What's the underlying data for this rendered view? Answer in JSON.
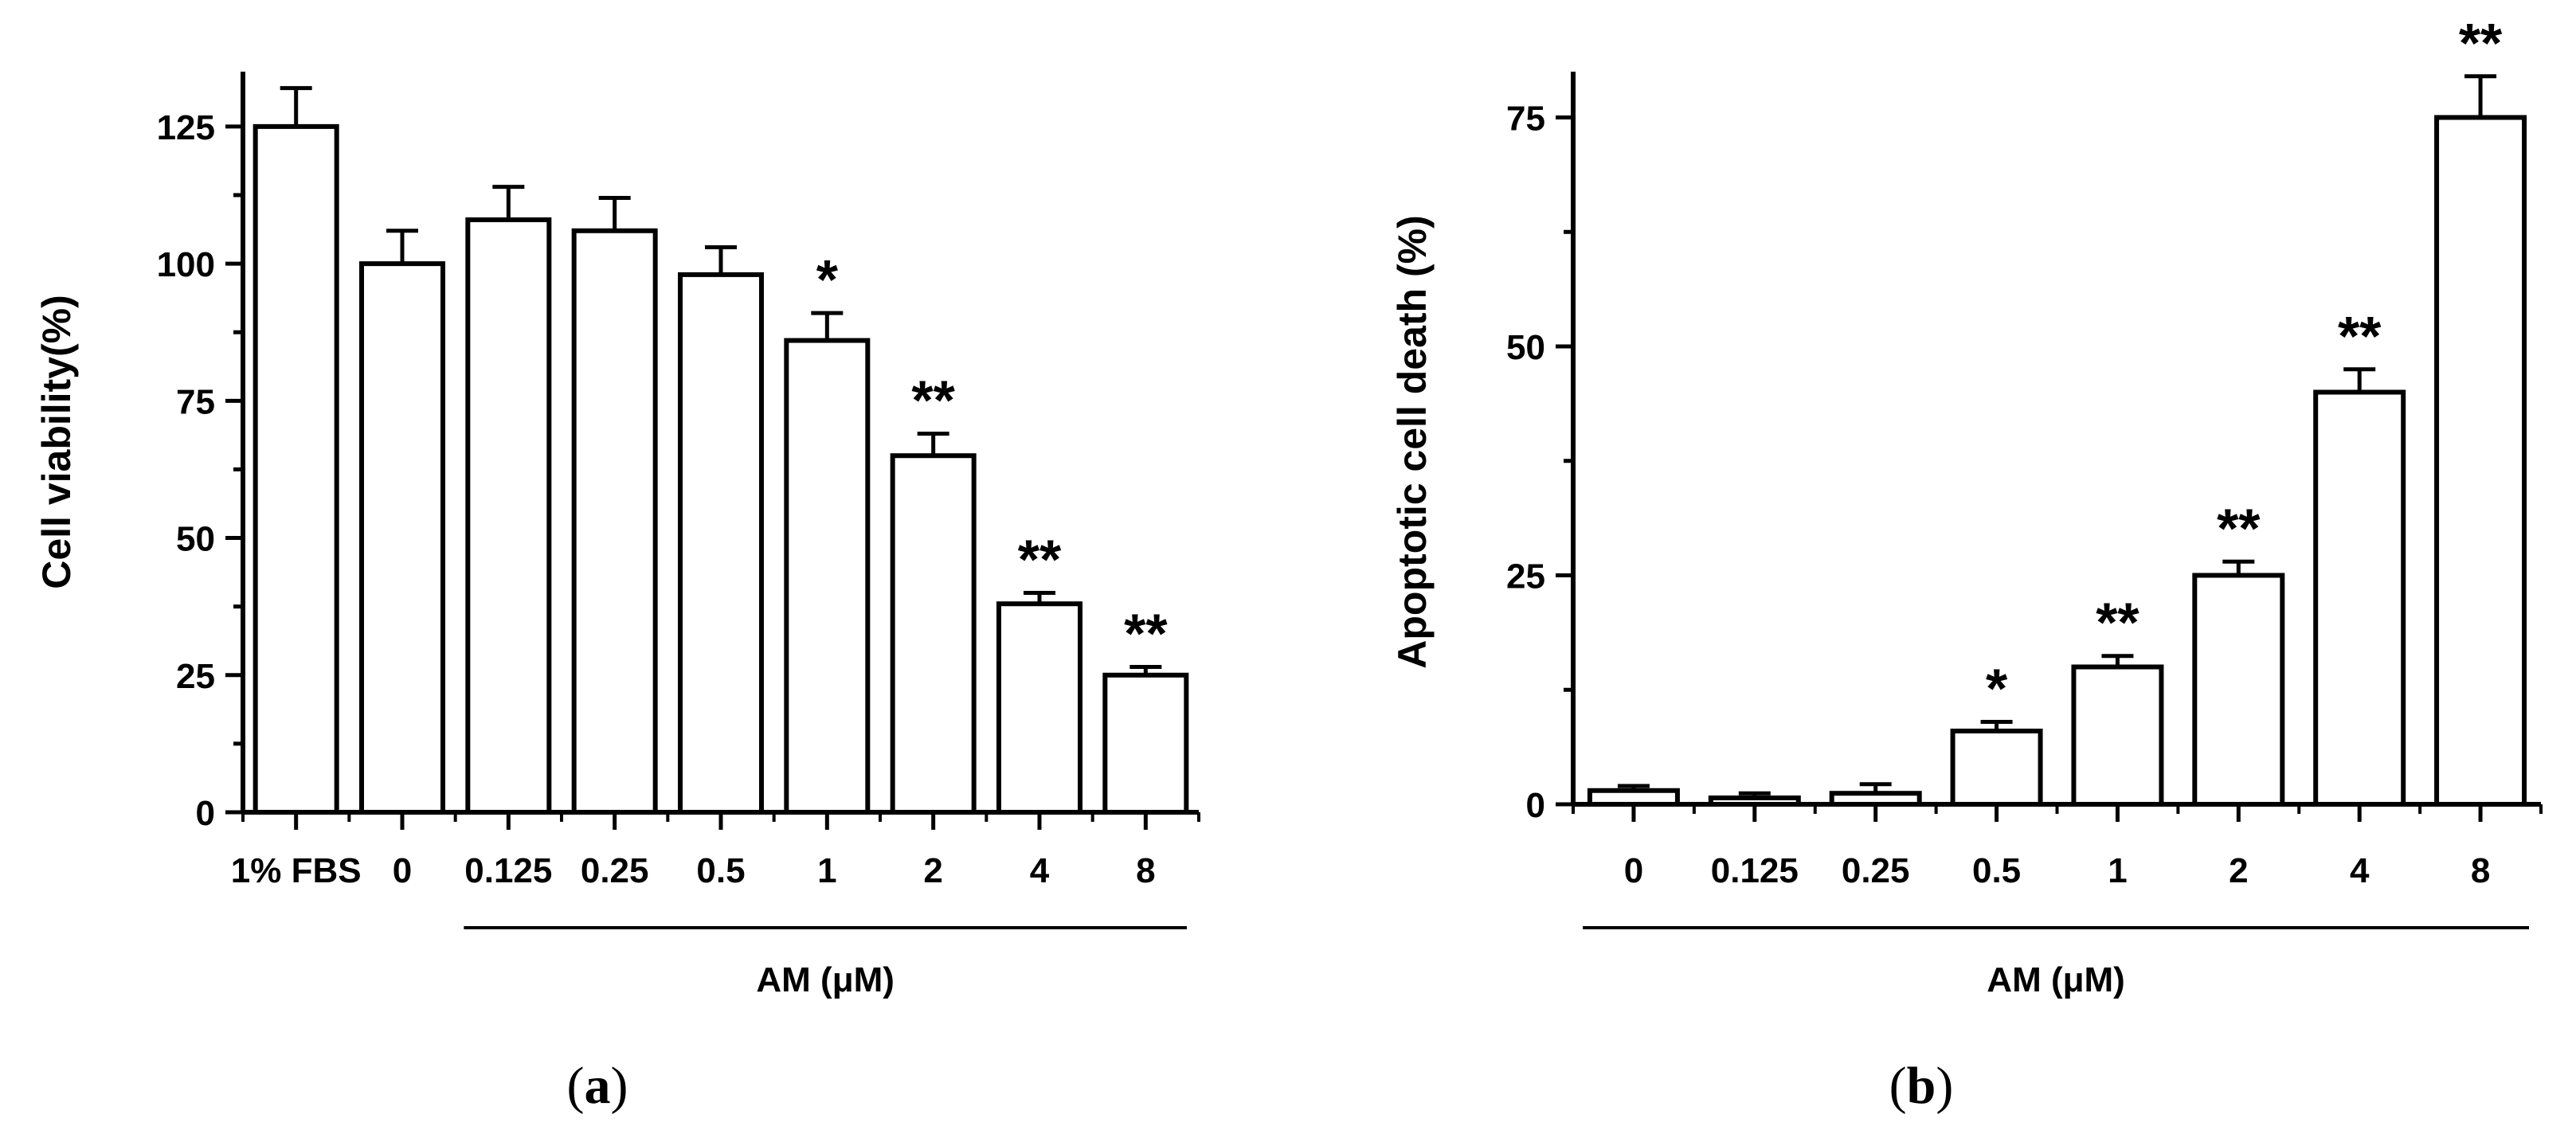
{
  "chart_data": [
    {
      "type": "bar",
      "panel_label": "(a)",
      "panel_label_letter": "a",
      "ylabel": "Cell viability(%)",
      "group_label": "AM (μM)",
      "categories": [
        "1% FBS",
        "0",
        "0.125",
        "0.25",
        "0.5",
        "1",
        "2",
        "4",
        "8"
      ],
      "values": [
        125,
        100,
        108,
        106,
        98,
        86,
        65,
        38,
        25
      ],
      "error": [
        7,
        6,
        6,
        6,
        5,
        5,
        4,
        2,
        1.5
      ],
      "significance": [
        "",
        "",
        "",
        "",
        "",
        "*",
        "**",
        "**",
        "**"
      ],
      "ylim": [
        0,
        135
      ],
      "yticks": [
        0,
        25,
        50,
        75,
        100,
        125
      ],
      "group_bar_from_index": 2,
      "bar_fill": "#ffffff",
      "bar_stroke": "#000000"
    },
    {
      "type": "bar",
      "panel_label": "(b)",
      "panel_label_letter": "b",
      "ylabel": "Apoptotic cell death (%)",
      "group_label": "AM (μM)",
      "categories": [
        "0",
        "0.125",
        "0.25",
        "0.5",
        "1",
        "2",
        "4",
        "8"
      ],
      "values": [
        1.5,
        0.7,
        1.2,
        8,
        15,
        25,
        45,
        75
      ],
      "error": [
        0.5,
        0.5,
        1,
        1,
        1.2,
        1.5,
        2.5,
        4.5
      ],
      "significance": [
        "",
        "",
        "",
        "*",
        "**",
        "**",
        "**",
        "**"
      ],
      "ylim": [
        0,
        80
      ],
      "yticks": [
        0,
        25,
        50,
        75
      ],
      "group_bar_from_index": 0,
      "bar_fill": "#ffffff",
      "bar_stroke": "#000000"
    }
  ]
}
